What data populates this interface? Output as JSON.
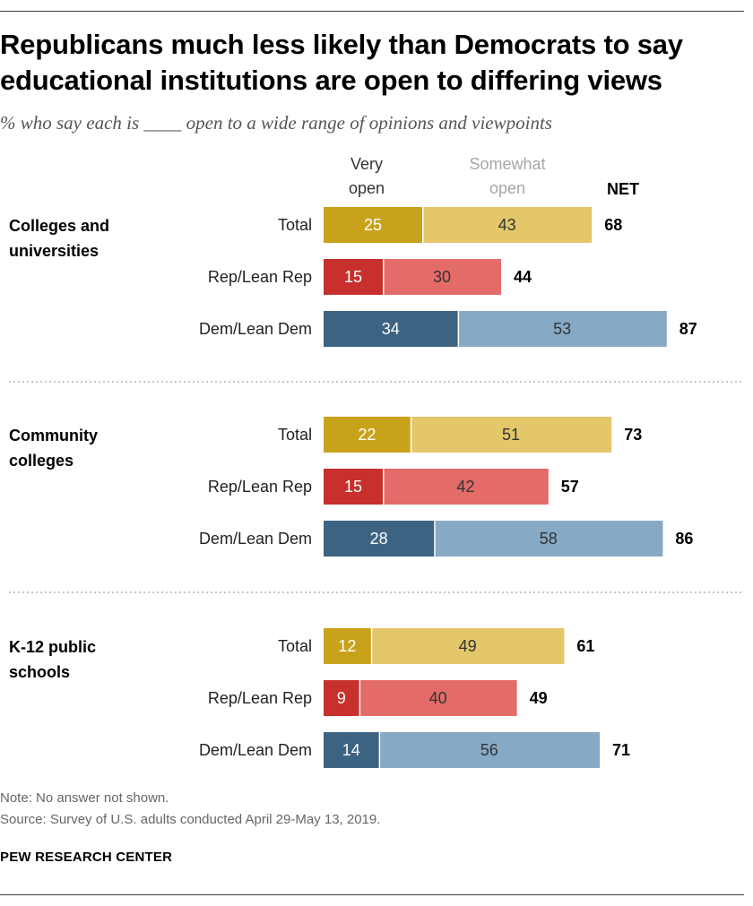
{
  "title": "Republicans much less likely than Democrats to say educational institutions are open to differing views",
  "subtitle": "% who say each is ____ open to a wide range of opinions and viewpoints",
  "note": "Note: No answer not shown.",
  "source": "Source: Survey of U.S. adults conducted April 29-May 13, 2019.",
  "brand": "PEW RESEARCH CENTER",
  "chart_data": {
    "type": "bar",
    "orientation": "horizontal",
    "stacked": true,
    "legend": [
      {
        "lines": [
          "Very",
          "open"
        ],
        "color": "#333333"
      },
      {
        "lines": [
          "Somewhat",
          "open"
        ],
        "color": "#a6a6a6"
      },
      {
        "lines": [
          "NET"
        ],
        "color": "#000000"
      }
    ],
    "series_names": [
      "Very open",
      "Somewhat open"
    ],
    "groups": [
      {
        "label_lines": [
          "Colleges and",
          "universities"
        ],
        "rows": [
          {
            "label": "Total",
            "very": 25,
            "somewhat": 43,
            "net": 68
          },
          {
            "label": "Rep/Lean Rep",
            "very": 15,
            "somewhat": 30,
            "net": 44
          },
          {
            "label": "Dem/Lean Dem",
            "very": 34,
            "somewhat": 53,
            "net": 87
          }
        ]
      },
      {
        "label_lines": [
          "Community",
          "colleges"
        ],
        "rows": [
          {
            "label": "Total",
            "very": 22,
            "somewhat": 51,
            "net": 73
          },
          {
            "label": "Rep/Lean Rep",
            "very": 15,
            "somewhat": 42,
            "net": 57
          },
          {
            "label": "Dem/Lean Dem",
            "very": 28,
            "somewhat": 58,
            "net": 86
          }
        ]
      },
      {
        "label_lines": [
          "K-12 public",
          "schools"
        ],
        "rows": [
          {
            "label": "Total",
            "very": 12,
            "somewhat": 49,
            "net": 61
          },
          {
            "label": "Rep/Lean Rep",
            "very": 9,
            "somewhat": 40,
            "net": 49
          },
          {
            "label": "Dem/Lean Dem",
            "very": 14,
            "somewhat": 56,
            "net": 71
          }
        ]
      }
    ],
    "colors": {
      "Total": {
        "very": "#c9a21b",
        "somewhat": "#e3c76a"
      },
      "Rep/Lean Rep": {
        "very": "#c7302c",
        "somewhat": "#e36b68"
      },
      "Dem/Lean Dem": {
        "very": "#3d6383",
        "somewhat": "#86a9c5"
      }
    },
    "xlim": [
      0,
      100
    ],
    "grid": false
  }
}
